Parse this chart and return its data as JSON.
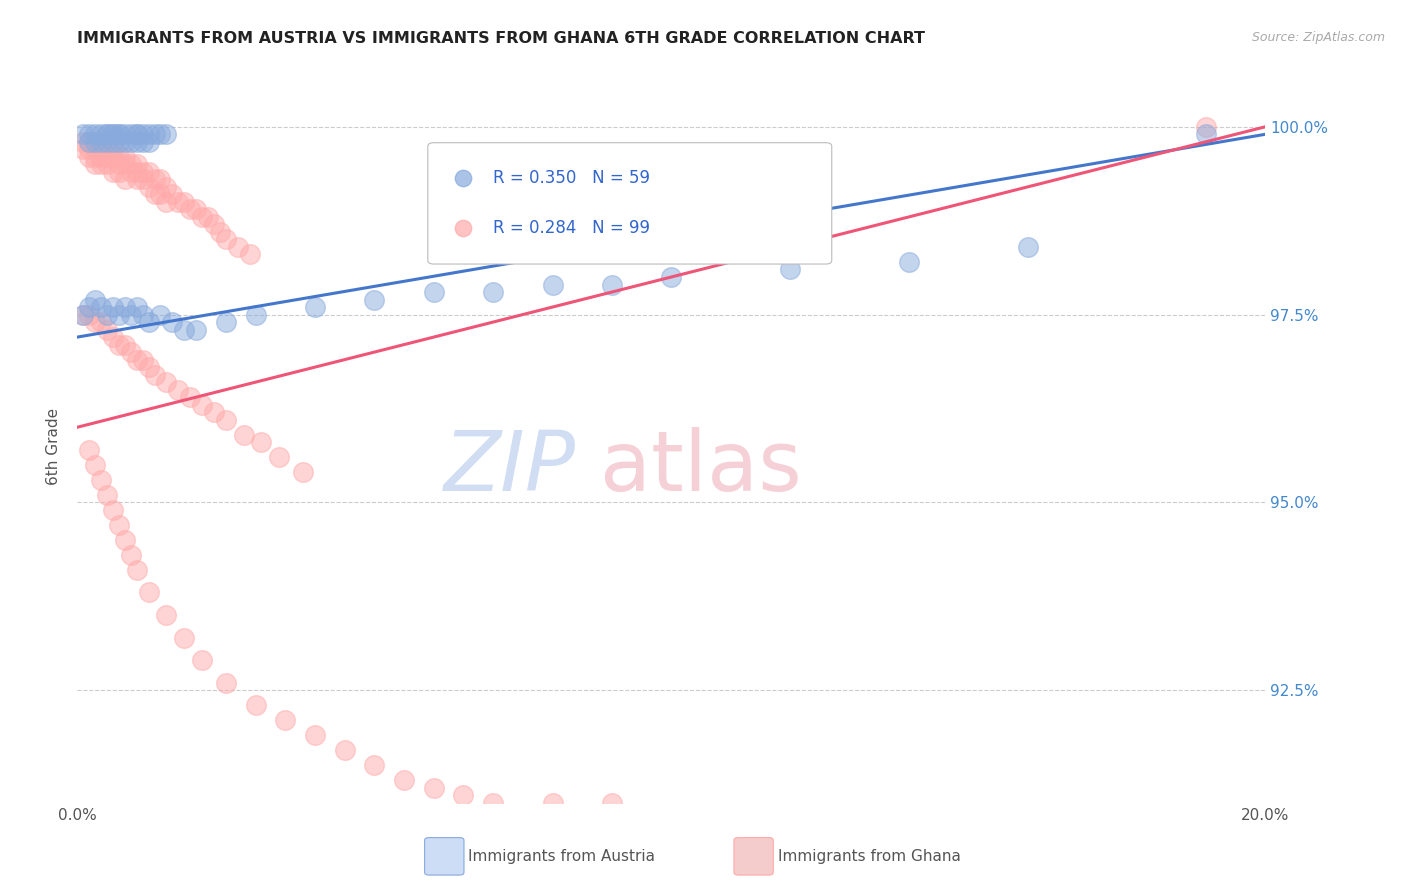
{
  "title": "IMMIGRANTS FROM AUSTRIA VS IMMIGRANTS FROM GHANA 6TH GRADE CORRELATION CHART",
  "source": "Source: ZipAtlas.com",
  "ylabel": "6th Grade",
  "austria_R": 0.35,
  "austria_N": 59,
  "ghana_R": 0.284,
  "ghana_N": 99,
  "austria_color": "#88aadd",
  "ghana_color": "#ffaaaa",
  "austria_line_color": "#4477cc",
  "ghana_line_color": "#ee5577",
  "legend_text_color": "#3366cc",
  "right_axis_color": "#4488cc",
  "xlim": [
    0.0,
    0.2
  ],
  "ylim": [
    0.91,
    1.005
  ],
  "x_ticks": [
    0.0,
    0.05,
    0.1,
    0.15,
    0.2
  ],
  "x_tick_labels": [
    "0.0%",
    "",
    "",
    "",
    "20.0%"
  ],
  "y_ticks": [
    0.925,
    0.95,
    0.975,
    1.0
  ],
  "y_tick_labels": [
    "92.5%",
    "95.0%",
    "97.5%",
    "100.0%"
  ],
  "austria_x": [
    0.001,
    0.002,
    0.002,
    0.003,
    0.003,
    0.004,
    0.004,
    0.005,
    0.005,
    0.005,
    0.006,
    0.006,
    0.006,
    0.007,
    0.007,
    0.007,
    0.008,
    0.008,
    0.009,
    0.009,
    0.01,
    0.01,
    0.01,
    0.011,
    0.011,
    0.012,
    0.012,
    0.013,
    0.014,
    0.015,
    0.001,
    0.002,
    0.003,
    0.004,
    0.005,
    0.006,
    0.007,
    0.008,
    0.009,
    0.01,
    0.011,
    0.012,
    0.014,
    0.016,
    0.018,
    0.02,
    0.025,
    0.03,
    0.04,
    0.05,
    0.06,
    0.07,
    0.08,
    0.09,
    0.1,
    0.12,
    0.14,
    0.16,
    0.19
  ],
  "austria_y": [
    0.999,
    0.999,
    0.998,
    0.999,
    0.998,
    0.999,
    0.998,
    0.999,
    0.999,
    0.998,
    0.999,
    0.999,
    0.998,
    0.999,
    0.999,
    0.998,
    0.999,
    0.998,
    0.999,
    0.998,
    0.999,
    0.999,
    0.998,
    0.999,
    0.998,
    0.999,
    0.998,
    0.999,
    0.999,
    0.999,
    0.975,
    0.976,
    0.977,
    0.976,
    0.975,
    0.976,
    0.975,
    0.976,
    0.975,
    0.976,
    0.975,
    0.974,
    0.975,
    0.974,
    0.973,
    0.973,
    0.974,
    0.975,
    0.976,
    0.977,
    0.978,
    0.978,
    0.979,
    0.979,
    0.98,
    0.981,
    0.982,
    0.984,
    0.999
  ],
  "ghana_x": [
    0.001,
    0.001,
    0.002,
    0.002,
    0.002,
    0.003,
    0.003,
    0.003,
    0.004,
    0.004,
    0.004,
    0.005,
    0.005,
    0.005,
    0.006,
    0.006,
    0.006,
    0.007,
    0.007,
    0.007,
    0.008,
    0.008,
    0.008,
    0.009,
    0.009,
    0.01,
    0.01,
    0.01,
    0.011,
    0.011,
    0.012,
    0.012,
    0.013,
    0.013,
    0.014,
    0.014,
    0.015,
    0.015,
    0.016,
    0.017,
    0.018,
    0.019,
    0.02,
    0.021,
    0.022,
    0.023,
    0.024,
    0.025,
    0.027,
    0.029,
    0.001,
    0.002,
    0.003,
    0.004,
    0.005,
    0.006,
    0.007,
    0.008,
    0.009,
    0.01,
    0.011,
    0.012,
    0.013,
    0.015,
    0.017,
    0.019,
    0.021,
    0.023,
    0.025,
    0.028,
    0.031,
    0.034,
    0.038,
    0.002,
    0.003,
    0.004,
    0.005,
    0.006,
    0.007,
    0.008,
    0.009,
    0.01,
    0.012,
    0.015,
    0.018,
    0.021,
    0.025,
    0.03,
    0.035,
    0.04,
    0.045,
    0.05,
    0.055,
    0.06,
    0.065,
    0.07,
    0.08,
    0.09,
    0.19
  ],
  "ghana_y": [
    0.998,
    0.997,
    0.998,
    0.997,
    0.996,
    0.997,
    0.996,
    0.995,
    0.997,
    0.996,
    0.995,
    0.997,
    0.996,
    0.995,
    0.997,
    0.996,
    0.994,
    0.996,
    0.995,
    0.994,
    0.996,
    0.995,
    0.993,
    0.995,
    0.994,
    0.995,
    0.994,
    0.993,
    0.994,
    0.993,
    0.994,
    0.992,
    0.993,
    0.991,
    0.993,
    0.991,
    0.992,
    0.99,
    0.991,
    0.99,
    0.99,
    0.989,
    0.989,
    0.988,
    0.988,
    0.987,
    0.986,
    0.985,
    0.984,
    0.983,
    0.975,
    0.975,
    0.974,
    0.974,
    0.973,
    0.972,
    0.971,
    0.971,
    0.97,
    0.969,
    0.969,
    0.968,
    0.967,
    0.966,
    0.965,
    0.964,
    0.963,
    0.962,
    0.961,
    0.959,
    0.958,
    0.956,
    0.954,
    0.957,
    0.955,
    0.953,
    0.951,
    0.949,
    0.947,
    0.945,
    0.943,
    0.941,
    0.938,
    0.935,
    0.932,
    0.929,
    0.926,
    0.923,
    0.921,
    0.919,
    0.917,
    0.915,
    0.913,
    0.912,
    0.911,
    0.91,
    0.91,
    0.91,
    1.0
  ],
  "austria_trendline_x": [
    0.0,
    0.2
  ],
  "austria_trendline_y": [
    0.972,
    0.999
  ],
  "ghana_trendline_x": [
    0.0,
    0.2
  ],
  "ghana_trendline_y": [
    0.96,
    1.0
  ]
}
